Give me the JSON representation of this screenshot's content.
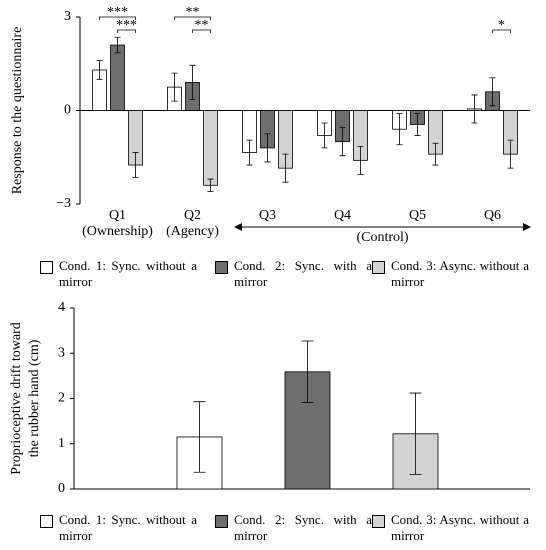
{
  "chart_data": [
    {
      "type": "bar",
      "ylabel": "Response to the questionnaire",
      "categories": [
        "Q1",
        "Q2",
        "Q3",
        "Q4",
        "Q5",
        "Q6"
      ],
      "category_notes": [
        "(Ownership)",
        "(Agency)",
        null,
        null,
        null,
        null
      ],
      "group_label": "(Control)",
      "group_span": [
        2,
        5
      ],
      "ylim": [
        -3,
        3
      ],
      "yticks": [
        3,
        0,
        {
          "value": -3,
          "label": "−3"
        }
      ],
      "series": [
        {
          "name": "Cond. 1: Sync. without a mirror",
          "color": "#ffffff",
          "values": [
            1.3,
            0.75,
            -1.35,
            -0.8,
            -0.6,
            0.05
          ],
          "errors": [
            0.3,
            0.45,
            0.4,
            0.4,
            0.5,
            0.45
          ]
        },
        {
          "name": "Cond. 2: Sync. with a mirror",
          "color": "#6e6e6e",
          "values": [
            2.1,
            0.9,
            -1.2,
            -1.0,
            -0.45,
            0.6
          ],
          "errors": [
            0.25,
            0.55,
            0.45,
            0.45,
            0.35,
            0.45
          ]
        },
        {
          "name": "Cond. 3: Async. without a mirror",
          "color": "#d3d3d3",
          "values": [
            -1.75,
            -2.4,
            -1.85,
            -1.6,
            -1.4,
            -1.4
          ],
          "errors": [
            0.4,
            0.2,
            0.45,
            0.45,
            0.35,
            0.45
          ]
        }
      ],
      "significance": [
        {
          "category": 0,
          "from": 0,
          "to": 2,
          "label": "***"
        },
        {
          "category": 0,
          "from": 1,
          "to": 2,
          "label": "***"
        },
        {
          "category": 1,
          "from": 0,
          "to": 2,
          "label": "**"
        },
        {
          "category": 1,
          "from": 1,
          "to": 2,
          "label": "**"
        },
        {
          "category": 5,
          "from": 1,
          "to": 2,
          "label": "*"
        }
      ]
    },
    {
      "type": "bar",
      "ylabel": [
        "Proprioceptive drift toward",
        "the rubber hand (cm)"
      ],
      "categories": [
        null,
        null,
        null
      ],
      "ylim": [
        0,
        4
      ],
      "yticks": [
        0,
        1,
        2,
        3,
        4
      ],
      "series": [
        {
          "name": "Cond. 1: Sync. without a mirror",
          "color": "#ffffff",
          "values": [
            1.15,
            null,
            null
          ],
          "errors": [
            0.78,
            null,
            null
          ]
        },
        {
          "name": "Cond. 2: Sync. with a mirror",
          "color": "#6e6e6e",
          "values": [
            null,
            2.59,
            null
          ],
          "errors": [
            null,
            0.68,
            null
          ]
        },
        {
          "name": "Cond. 3: Async. without a mirror",
          "color": "#d3d3d3",
          "values": [
            null,
            null,
            1.22
          ],
          "errors": [
            null,
            null,
            0.9
          ]
        }
      ]
    }
  ]
}
